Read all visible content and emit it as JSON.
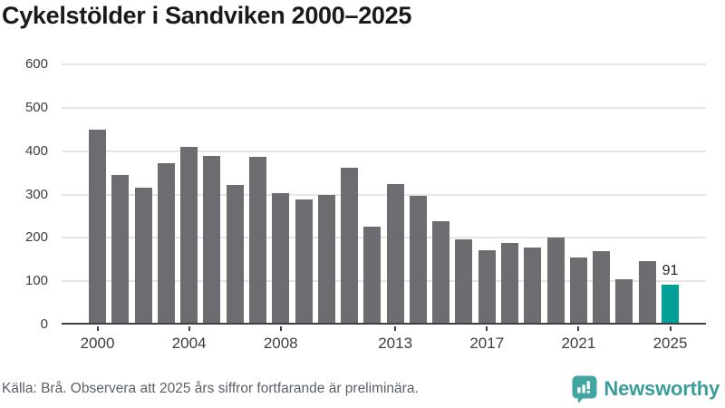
{
  "chart_data": {
    "type": "bar",
    "title": "Cykelstölder i Sandviken 2000–2025",
    "x": [
      2000,
      2001,
      2002,
      2003,
      2004,
      2005,
      2006,
      2007,
      2008,
      2009,
      2010,
      2011,
      2012,
      2013,
      2014,
      2015,
      2016,
      2017,
      2018,
      2019,
      2020,
      2021,
      2022,
      2023,
      2024,
      2025
    ],
    "values": [
      450,
      345,
      315,
      372,
      410,
      388,
      321,
      386,
      303,
      288,
      298,
      362,
      226,
      323,
      297,
      239,
      197,
      172,
      188,
      178,
      201,
      155,
      170,
      105,
      147,
      91
    ],
    "highlight": {
      "x": 2025,
      "value": 91,
      "label": "91",
      "color": "#00a099"
    },
    "bar_color": "#6d6c71",
    "xlabel": "",
    "ylabel": "",
    "ylim": [
      0,
      600
    ],
    "yticks": [
      0,
      100,
      200,
      300,
      400,
      500,
      600
    ],
    "xticks": [
      2000,
      2004,
      2008,
      2013,
      2017,
      2021,
      2025
    ],
    "grid": "horizontal",
    "legend_position": "none"
  },
  "footer": {
    "source_note": "Källa: Brå. Observera att 2025 års siffror fortfarande är preliminära.",
    "brand": "Newsworthy",
    "logo_icon": "newsworthy-bubble-bar-chart-icon"
  },
  "colors": {
    "bar": "#6d6c71",
    "highlight": "#00a099",
    "axis_line": "#3f3f42",
    "tick_label": "#3d3d3d",
    "gridline": "#e5e5e7",
    "title": "#1a1a1a",
    "footer_text": "#5b6066",
    "brand_text": "#3a9d9b",
    "logo_fill": "#41a5a1"
  }
}
